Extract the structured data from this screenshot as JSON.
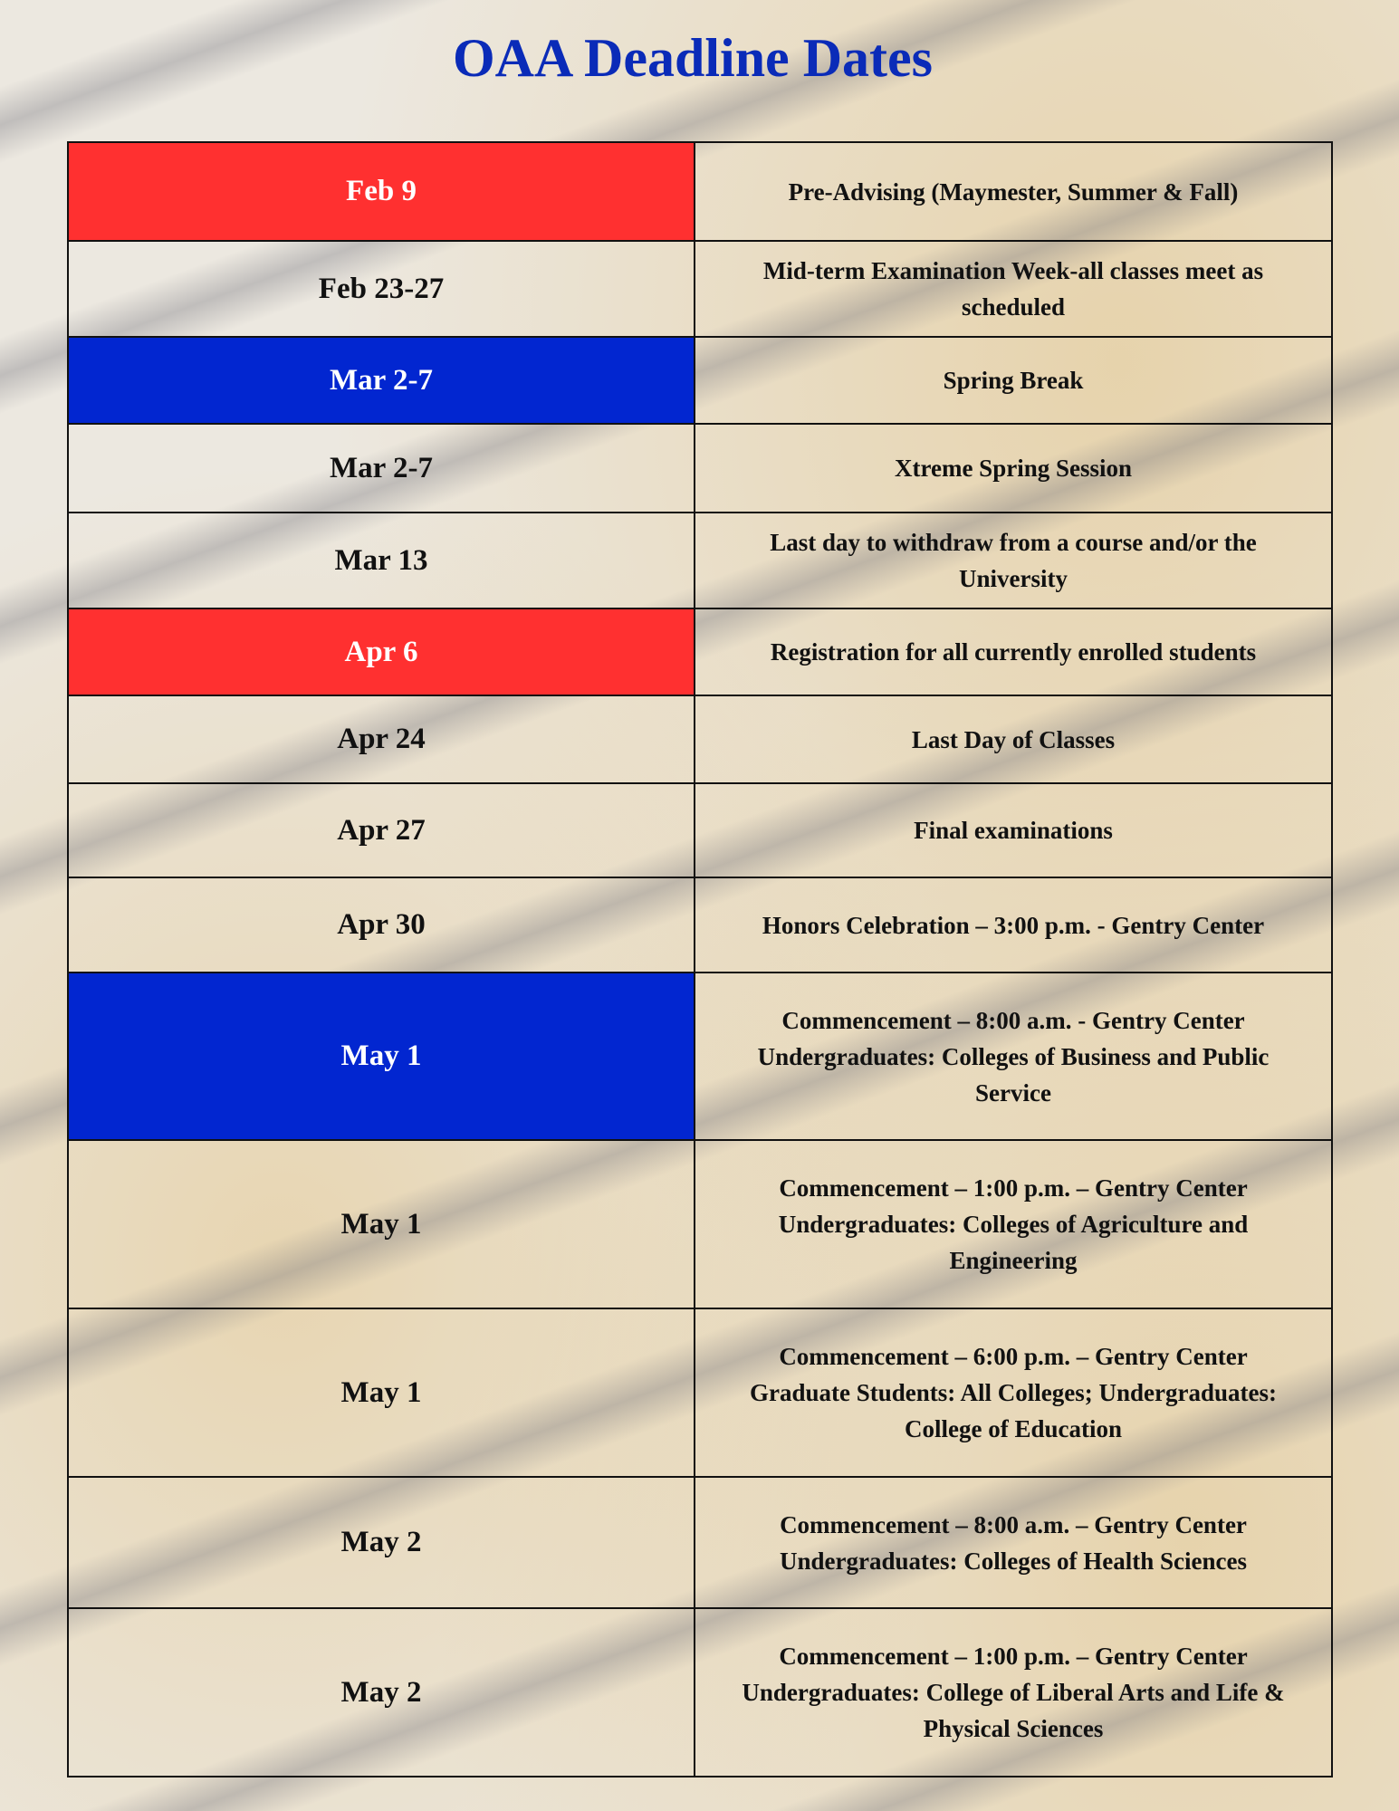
{
  "title": "OAA Deadline Dates",
  "colors": {
    "title": "#0a2bb8",
    "red_highlight": "#ff3030",
    "blue_highlight": "#0226d0"
  },
  "rows": [
    {
      "date": "Feb 9",
      "highlight": "red",
      "lines": [
        "Pre-Advising (Maymester, Summer & Fall)"
      ]
    },
    {
      "date": "Feb 23-27",
      "highlight": "none",
      "lines": [
        "Mid-term Examination Week-all classes meet as scheduled"
      ]
    },
    {
      "date": "Mar 2-7",
      "highlight": "blue",
      "lines": [
        "Spring Break"
      ]
    },
    {
      "date": "Mar 2-7",
      "highlight": "none",
      "lines": [
        "Xtreme Spring Session"
      ]
    },
    {
      "date": "Mar 13",
      "highlight": "none",
      "lines": [
        "Last day to withdraw from a course and/or the University"
      ]
    },
    {
      "date": "Apr 6",
      "highlight": "red",
      "lines": [
        "Registration for all currently enrolled students"
      ]
    },
    {
      "date": "Apr 24",
      "highlight": "none",
      "lines": [
        "Last Day of Classes"
      ]
    },
    {
      "date": "Apr 27",
      "highlight": "none",
      "lines": [
        "Final examinations"
      ]
    },
    {
      "date": "Apr 30",
      "highlight": "none",
      "lines": [
        "Honors Celebration – 3:00 p.m. - Gentry Center"
      ]
    },
    {
      "date": "May 1",
      "highlight": "blue",
      "lines": [
        "Commencement – 8:00 a.m. - Gentry Center",
        "Undergraduates: Colleges of Business and Public Service"
      ]
    },
    {
      "date": "May 1",
      "highlight": "none",
      "lines": [
        "Commencement – 1:00 p.m. – Gentry Center",
        "Undergraduates: Colleges of Agriculture and Engineering"
      ]
    },
    {
      "date": "May 1",
      "highlight": "none",
      "lines": [
        "Commencement – 6:00 p.m. – Gentry Center",
        "Graduate Students: All Colleges; Undergraduates: College of Education"
      ]
    },
    {
      "date": "May 2",
      "highlight": "none",
      "lines": [
        "Commencement – 8:00 a.m. – Gentry Center",
        "Undergraduates: Colleges of Health Sciences"
      ]
    },
    {
      "date": "May 2",
      "highlight": "none",
      "lines": [
        "Commencement – 1:00 p.m. – Gentry Center",
        "Undergraduates: College of Liberal Arts and Life & Physical Sciences"
      ]
    }
  ]
}
